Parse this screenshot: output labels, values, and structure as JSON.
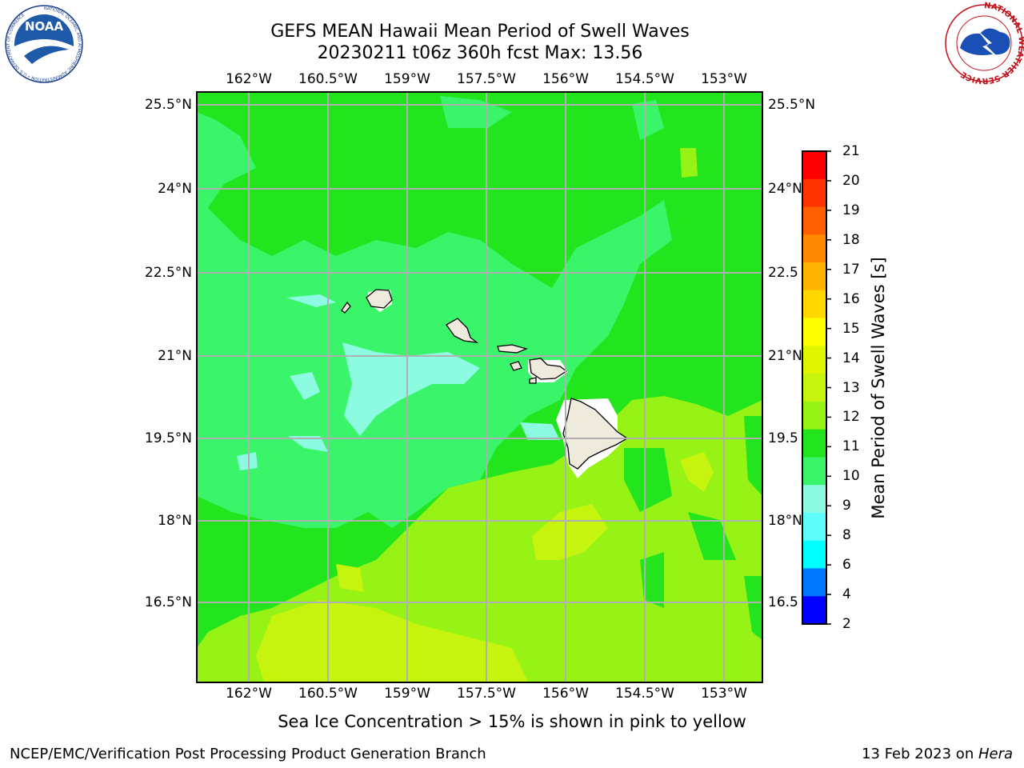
{
  "title": {
    "line1": "GEFS MEAN Hawaii Mean Period of Swell Waves",
    "line2": "20230211 t06z 360h fcst   Max: 13.56"
  },
  "map": {
    "lon_labels": [
      "162°W",
      "160.5°W",
      "159°W",
      "157.5°W",
      "156°W",
      "154.5°W",
      "153°W"
    ],
    "lat_labels": [
      "25.5°N",
      "24°N",
      "22.5°N",
      "21°N",
      "19.5°N",
      "18°N",
      "16.5°N"
    ],
    "right_lat_labels": [
      "25.5°N",
      "24°N",
      "22.5",
      "21°N",
      "19.5",
      "18°N",
      "16.5"
    ],
    "colors": {
      "land": "#eeeadc",
      "grid": "#b0b0b0",
      "green": "#22e51e",
      "light_green": "#3af56a",
      "cyan": "#8cfbe2",
      "yellow_green": "#96f315",
      "lime": "#c7f40f"
    }
  },
  "colorbar": {
    "title": "Mean Period of Swell Waves [s]",
    "ticks": [
      "21",
      "20",
      "19",
      "18",
      "17",
      "16",
      "15",
      "14",
      "13",
      "12",
      "11",
      "10",
      "9",
      "8",
      "6",
      "4",
      "2"
    ],
    "colors": [
      "#ff0000",
      "#ff3300",
      "#ff5f00",
      "#ff8a00",
      "#ffb400",
      "#ffd800",
      "#ffff00",
      "#e0f500",
      "#c7f40f",
      "#96f315",
      "#22e51e",
      "#3af56a",
      "#8cfbe2",
      "#5cfdfb",
      "#00ffff",
      "#0077ff",
      "#0000ff"
    ]
  },
  "footnote": "Sea Ice Concentration > 15% is shown in pink to yellow",
  "footer": {
    "left": "NCEP/EMC/Verification Post Processing Product Generation Branch",
    "right_prefix": "13 Feb 2023 on ",
    "right_machine": "Hera"
  },
  "logos": {
    "noaa_text": "NOAA",
    "noaa_ring": "NATIONAL OCEANIC AND ATMOSPHERIC ADMINISTRATION • U.S. DEPARTMENT OF COMMERCE",
    "nws_ring": "NATIONAL WEATHER SERVICE"
  }
}
